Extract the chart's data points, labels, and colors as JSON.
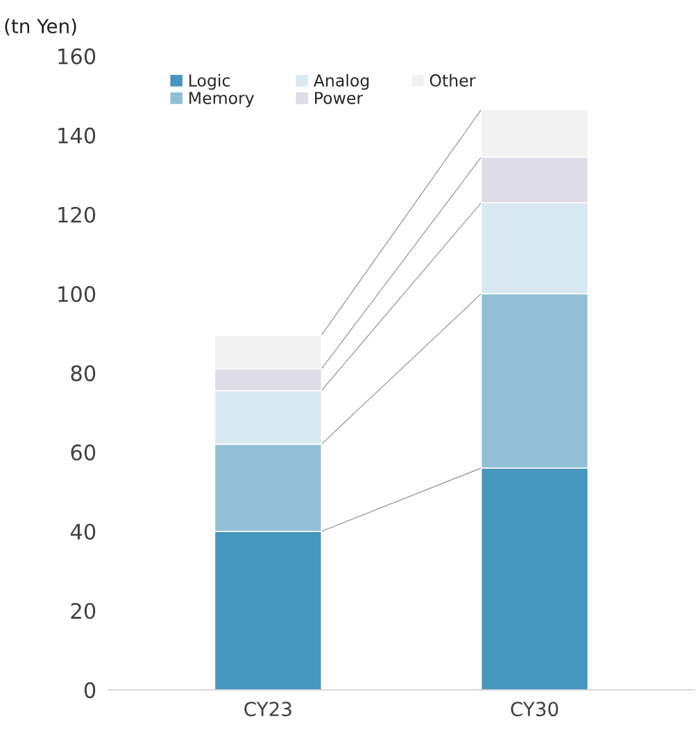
{
  "chart_data": {
    "type": "bar",
    "stacked": true,
    "ylabel": "(tn Yen)",
    "categories": [
      "CY23",
      "CY30"
    ],
    "series": [
      {
        "name": "Logic",
        "color": "#4796bf",
        "values": [
          40,
          56
        ]
      },
      {
        "name": "Memory",
        "color": "#92bfd6",
        "values": [
          22,
          44
        ]
      },
      {
        "name": "Analog",
        "color": "#d9e9f2",
        "values": [
          13.5,
          23
        ]
      },
      {
        "name": "Power",
        "color": "#dcdbe6",
        "values": [
          5.5,
          11.5
        ]
      },
      {
        "name": "Other",
        "color": "#f2f2f2",
        "values": [
          8.5,
          12
        ]
      }
    ],
    "ylim": [
      0,
      160
    ],
    "yticks": [
      0,
      20,
      40,
      60,
      80,
      100,
      120,
      140,
      160
    ],
    "grid": false,
    "legend": "top left"
  }
}
